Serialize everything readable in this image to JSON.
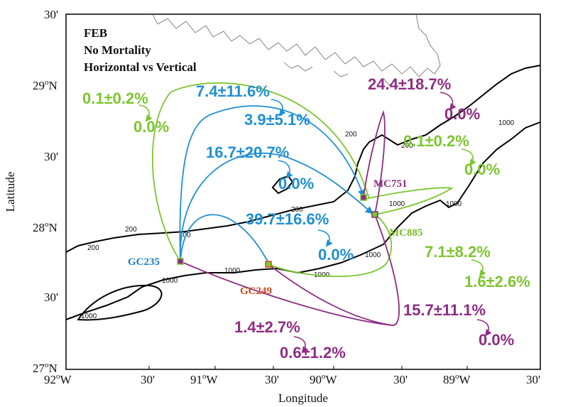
{
  "info_lines": [
    "FEB",
    "No Mortality",
    "Horizontal vs Vertical"
  ],
  "axes": {
    "xlabel": "Longitude",
    "ylabel": "Latitude",
    "x_ticks": [
      {
        "deg": "92",
        "sup": "o",
        "suf": "W"
      },
      {
        "deg": "30'",
        "sup": "",
        "suf": ""
      },
      {
        "deg": "91",
        "sup": "o",
        "suf": "W"
      },
      {
        "deg": "30'",
        "sup": "",
        "suf": ""
      },
      {
        "deg": "90",
        "sup": "o",
        "suf": "W"
      },
      {
        "deg": "30'",
        "sup": "",
        "suf": ""
      },
      {
        "deg": "89",
        "sup": "o",
        "suf": "W"
      },
      {
        "deg": "30'",
        "sup": "",
        "suf": ""
      }
    ],
    "y_ticks": [
      {
        "deg": "30'",
        "sup": "",
        "suf": ""
      },
      {
        "deg": "29",
        "sup": "o",
        "suf": "N"
      },
      {
        "deg": "30'",
        "sup": "",
        "suf": ""
      },
      {
        "deg": "28",
        "sup": "o",
        "suf": "N"
      },
      {
        "deg": "30'",
        "sup": "",
        "suf": ""
      },
      {
        "deg": "27",
        "sup": "o",
        "suf": "N"
      }
    ]
  },
  "contour_labels": [
    "200",
    "200",
    "200",
    "200",
    "200",
    "200",
    "1000",
    "1000",
    "1000",
    "1000",
    "1000",
    "1000",
    "1000",
    "1000"
  ],
  "sites": {
    "gc235": "GC235",
    "gc249": "GC249",
    "mc751": "MC751",
    "mc885": "MC885"
  },
  "percentages": {
    "green_top_left": "0.1±0.2%",
    "green_top_left_b": "0.0%",
    "blue_top": "7.4±11.6%",
    "blue_top_b": "3.9±5.1%",
    "purple_top_right": "24.4±18.7%",
    "purple_top_right_b": "0.0%",
    "green_right": "0.1±0.2%",
    "green_right_b": "0.0%",
    "blue_mid": "16.7±20.7%",
    "blue_mid_b": "0.0%",
    "blue_low": "39.7±16.6%",
    "blue_low_b": "0.0%",
    "green_lower_right": "7.1±8.2%",
    "green_lower_right_b": "1.6±2.6%",
    "purple_bottom_right": "15.7±11.1%",
    "purple_bottom_right_b": "0.0%",
    "purple_bottom": "1.4±2.7%",
    "purple_bottom_b": "0.6±1.2%"
  },
  "colors": {
    "blue": "#1f8fd4",
    "green": "#7cc62e",
    "purple": "#8e2d82",
    "red_label": "#d24a1e",
    "site_blue": "#1f7fc2",
    "site_green": "#7cb82e"
  }
}
